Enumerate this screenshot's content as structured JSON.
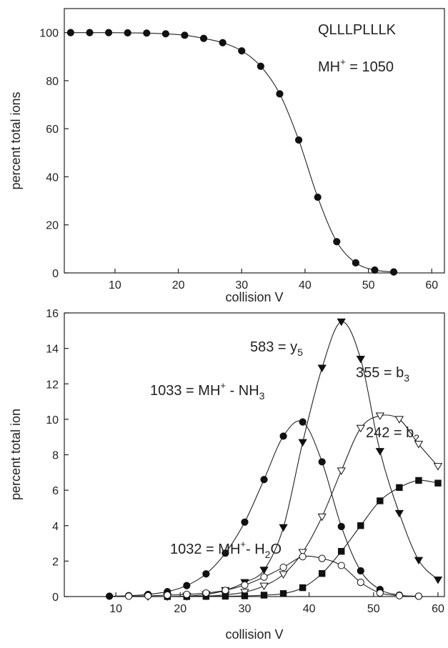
{
  "chart_data": [
    {
      "type": "scatter",
      "xlabel": "collision V",
      "ylabel": "percent total ions",
      "xlim": [
        2,
        62
      ],
      "ylim": [
        0,
        110
      ],
      "xticks": [
        10,
        20,
        30,
        40,
        50,
        60
      ],
      "yticks": [
        0,
        20,
        40,
        60,
        80,
        100
      ],
      "grid": false,
      "annotations": {
        "peptide": "QLLLPLLLK",
        "mass_main": "MH",
        "mass_sup": "+",
        "mass_rest": " = 1050"
      },
      "series": [
        {
          "marker": "filled-circle",
          "x": [
            3,
            6,
            9,
            12,
            15,
            18,
            21,
            24,
            27,
            30,
            33,
            36,
            39,
            42,
            45,
            48,
            51,
            54
          ],
          "y": [
            100,
            100,
            100,
            99.9,
            99.8,
            99.5,
            98.9,
            97.6,
            95.8,
            92.4,
            86,
            74.5,
            55.3,
            31.5,
            13,
            4.2,
            1.2,
            0.4
          ]
        }
      ]
    },
    {
      "type": "scatter",
      "xlabel": "collision V",
      "ylabel": "percent total ion",
      "xlim": [
        2,
        61
      ],
      "ylim": [
        0,
        16
      ],
      "xticks": [
        10,
        20,
        30,
        40,
        50,
        60
      ],
      "yticks": [
        0,
        2,
        4,
        6,
        8,
        10,
        12,
        14,
        16
      ],
      "grid": false,
      "annotations": [
        {
          "main": "583 = y",
          "sub": "5"
        },
        {
          "main": "1033 = MH",
          "sup": "+",
          "rest": " - NH",
          "sub": "3"
        },
        {
          "main": "355 = b",
          "sub": "3"
        },
        {
          "main": "242 = b",
          "sub": "2"
        },
        {
          "main": "1032 = MH",
          "sup": "+",
          "rest": "- H",
          "sub": "2",
          "tail": "O"
        }
      ],
      "series": [
        {
          "label": "1033 = MH+ - NH3",
          "marker": "filled-circle",
          "x": [
            9,
            12,
            15,
            18,
            21,
            24,
            27,
            30,
            33,
            36,
            39,
            42,
            45,
            48,
            51,
            54,
            57
          ],
          "y": [
            0.02,
            0.05,
            0.12,
            0.28,
            0.62,
            1.28,
            2.45,
            4.2,
            6.6,
            9.05,
            9.85,
            7.6,
            3.95,
            1.45,
            0.4,
            0.08,
            0.02
          ]
        },
        {
          "label": "583 = y5",
          "marker": "filled-triangle-down",
          "x": [
            15,
            18,
            21,
            24,
            27,
            30,
            33,
            36,
            39,
            42,
            45,
            48,
            51,
            54,
            57,
            60
          ],
          "y": [
            0,
            0,
            0.03,
            0.12,
            0.35,
            0.8,
            1.5,
            3.9,
            8.7,
            12.9,
            15.5,
            13.4,
            8.2,
            4.7,
            2.05,
            0.95
          ]
        },
        {
          "label": "355 = b3",
          "marker": "open-triangle-down",
          "x": [
            18,
            21,
            24,
            27,
            30,
            33,
            36,
            39,
            42,
            45,
            48,
            51,
            54,
            57,
            60
          ],
          "y": [
            0,
            0.01,
            0.03,
            0.1,
            0.25,
            0.6,
            1.25,
            2.5,
            4.5,
            7.1,
            9.5,
            10.2,
            10.0,
            8.6,
            7.35
          ]
        },
        {
          "label": "242 = b2",
          "marker": "filled-square",
          "x": [
            18,
            21,
            24,
            27,
            30,
            33,
            36,
            39,
            42,
            45,
            48,
            51,
            54,
            57,
            60
          ],
          "y": [
            0,
            0,
            0.01,
            0.02,
            0.04,
            0.08,
            0.17,
            0.5,
            1.3,
            2.55,
            4.0,
            5.4,
            6.15,
            6.55,
            6.4
          ]
        },
        {
          "label": "1032 = MH+- H2O",
          "marker": "open-circle",
          "x": [
            12,
            15,
            18,
            21,
            24,
            27,
            30,
            33,
            36,
            39,
            42,
            45,
            48,
            51,
            54,
            57
          ],
          "y": [
            0.02,
            0.04,
            0.08,
            0.12,
            0.2,
            0.35,
            0.65,
            1.1,
            1.65,
            2.25,
            2.15,
            1.75,
            0.8,
            0.2,
            0.05,
            0.02
          ]
        }
      ]
    }
  ]
}
